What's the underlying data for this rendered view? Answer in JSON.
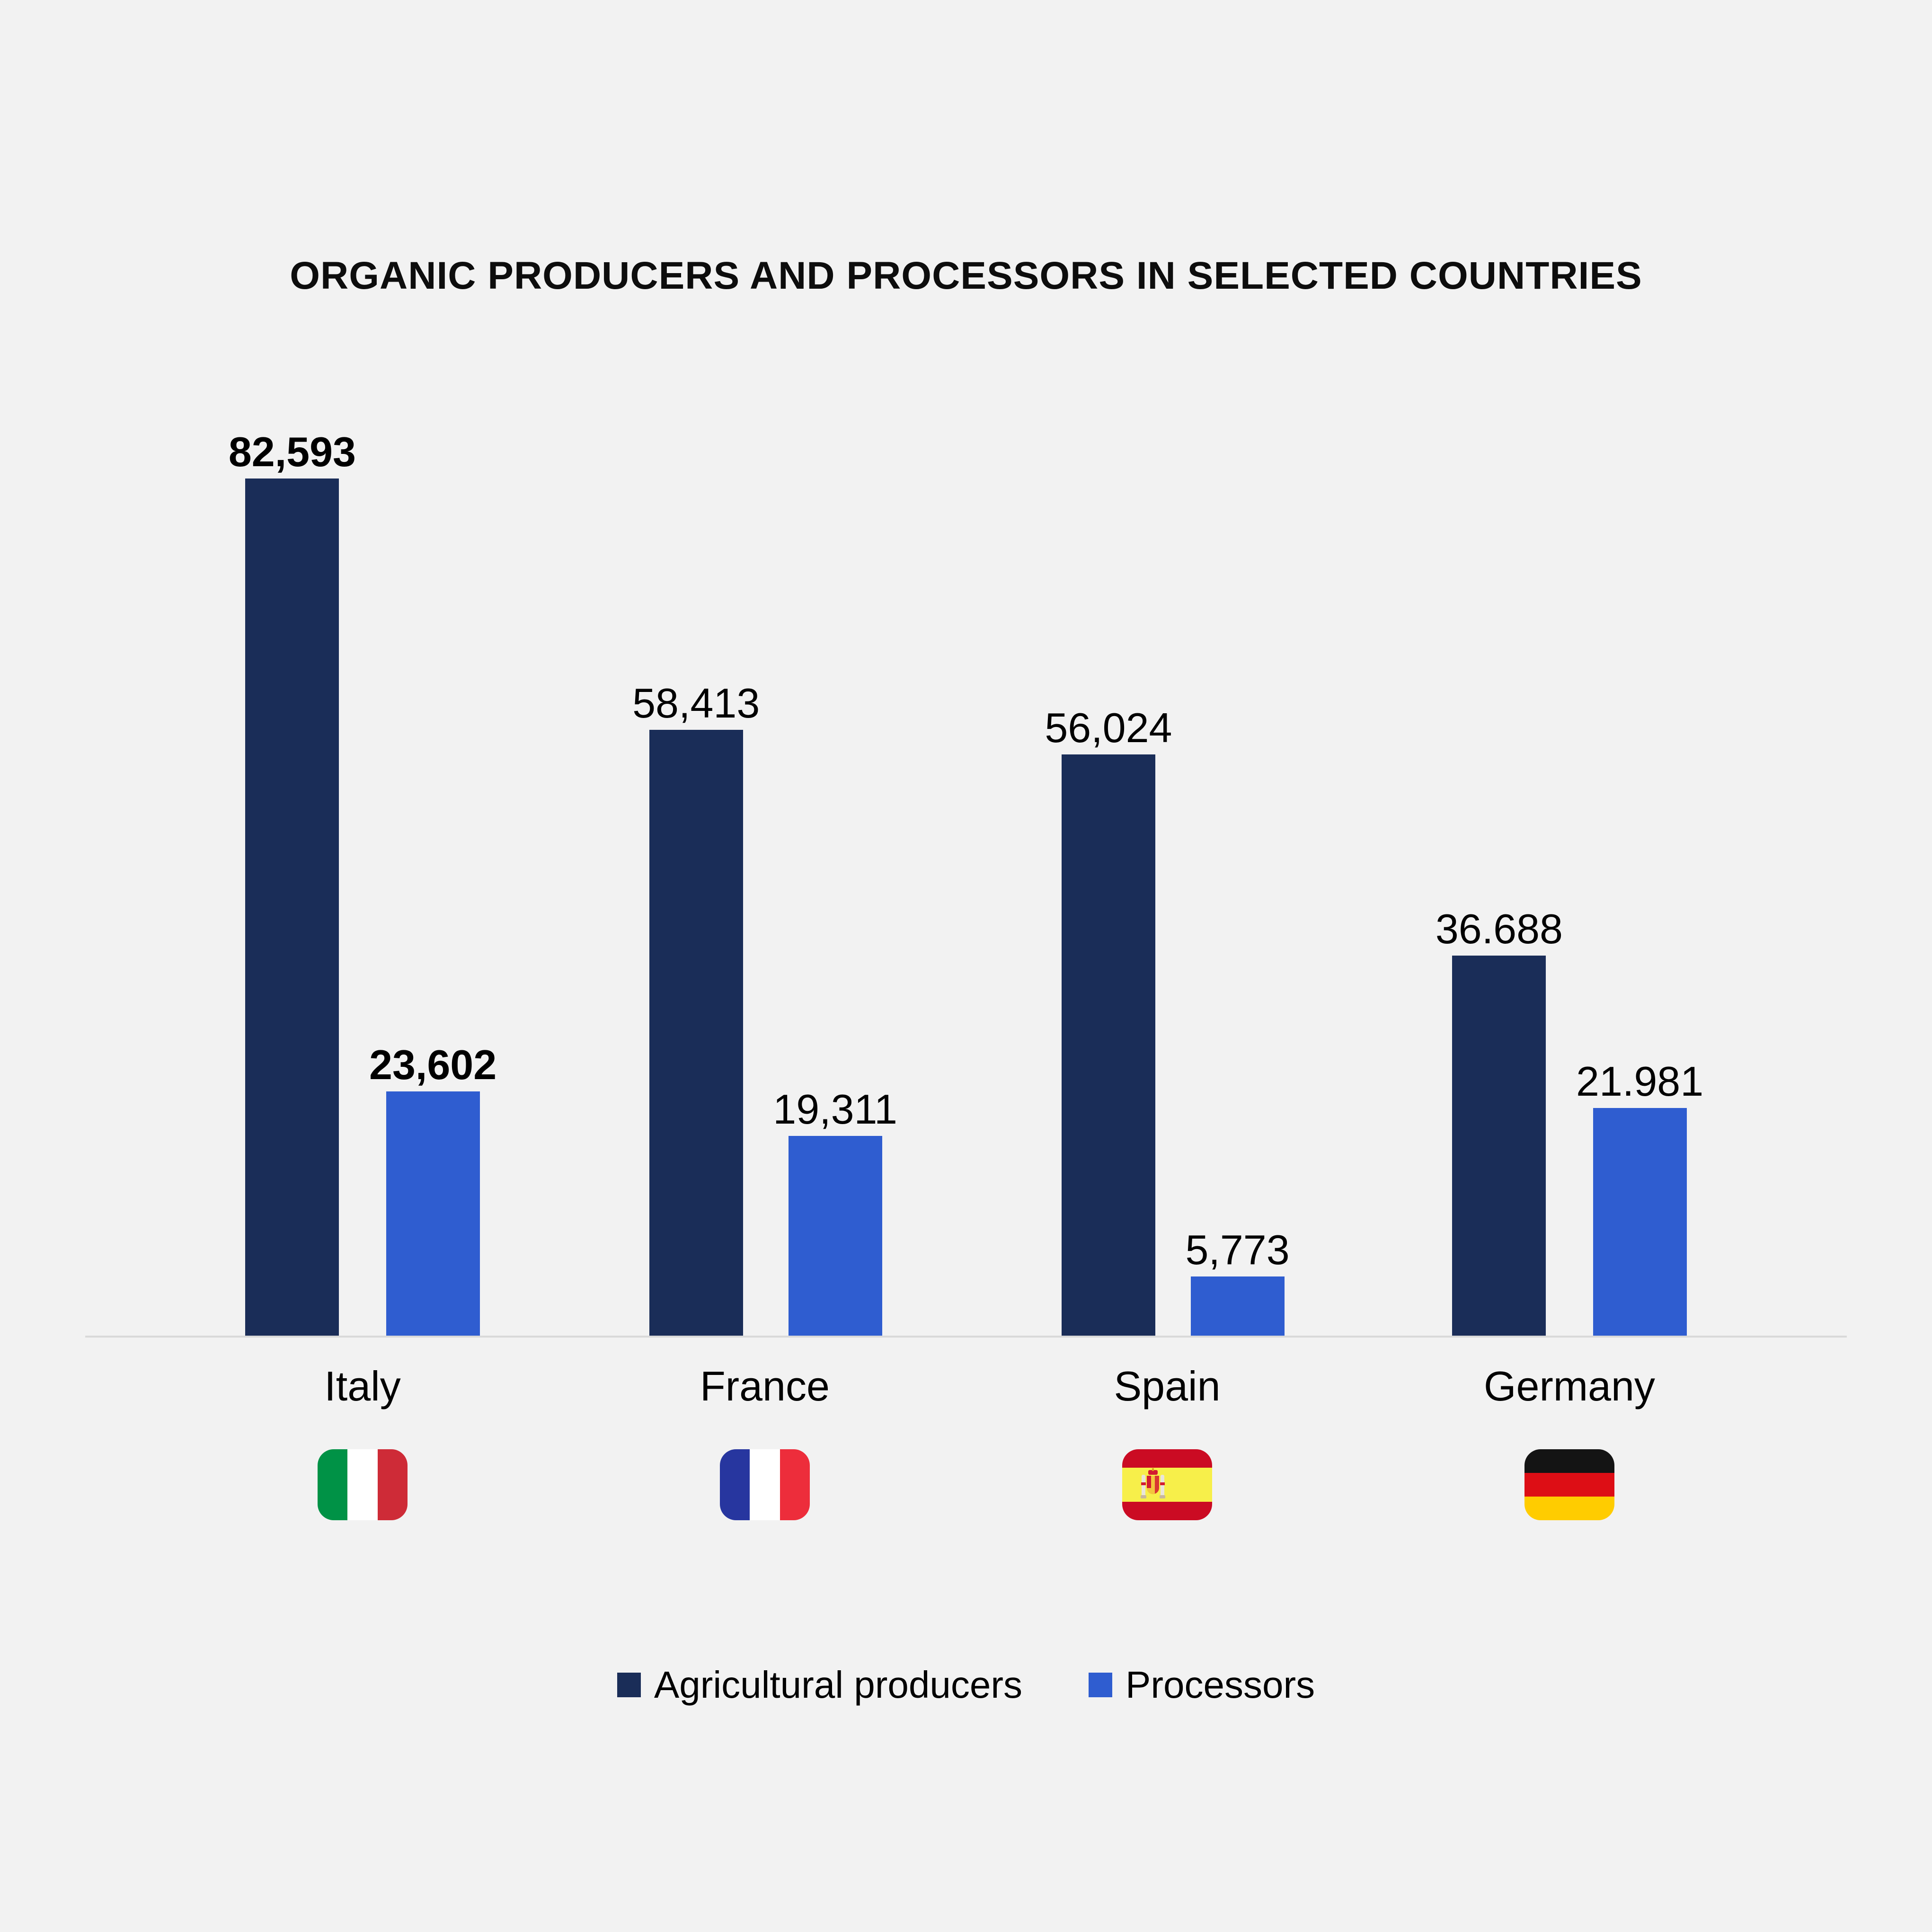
{
  "title": "ORGANIC PRODUCERS AND PROCESSORS IN SELECTED COUNTRIES",
  "background_color": "#f2f2f2",
  "axis_line_color": "#d9d9d9",
  "chart_data": {
    "type": "bar",
    "title": "ORGANIC PRODUCERS AND PROCESSORS IN SELECTED COUNTRIES",
    "categories": [
      "Italy",
      "France",
      "Spain",
      "Germany"
    ],
    "series": [
      {
        "name": "Agricultural producers",
        "color": "#1a2d58",
        "values": [
          82593,
          58413,
          56024,
          36688
        ],
        "labels": [
          "82,593",
          "58,413",
          "56,024",
          "36.688"
        ]
      },
      {
        "name": "Processors",
        "color": "#2f5dd0",
        "values": [
          23602,
          19311,
          5773,
          21981
        ],
        "labels": [
          "23,602",
          "19,311",
          "5,773",
          "21.981"
        ]
      }
    ],
    "bold_value_labels": [
      true,
      false,
      false,
      false
    ],
    "ylim": [
      0,
      82593
    ],
    "gridlines": false,
    "y_axis_visible": false,
    "legend_position": "bottom"
  },
  "legend": {
    "items": [
      {
        "label": "Agricultural producers",
        "color": "#1a2d58"
      },
      {
        "label": "Processors",
        "color": "#2f5dd0"
      }
    ]
  },
  "flags": [
    {
      "country": "Italy",
      "orientation": "vertical",
      "stripes": [
        "#009246",
        "#ffffff",
        "#ce2b37"
      ],
      "stripe_sizes": [
        33.3,
        33.4,
        33.3
      ],
      "emblem": false
    },
    {
      "country": "France",
      "orientation": "vertical",
      "stripes": [
        "#27369f",
        "#ffffff",
        "#ed2d3b"
      ],
      "stripe_sizes": [
        33.3,
        33.4,
        33.3
      ],
      "emblem": false
    },
    {
      "country": "Spain",
      "orientation": "horizontal",
      "stripes": [
        "#cb0b23",
        "#f7ef4a",
        "#cb0b23"
      ],
      "stripe_sizes": [
        26,
        48,
        26
      ],
      "emblem": true
    },
    {
      "country": "Germany",
      "orientation": "horizontal",
      "stripes": [
        "#141414",
        "#dd0e15",
        "#ffcc00"
      ],
      "stripe_sizes": [
        33.3,
        33.4,
        33.3
      ],
      "emblem": false
    }
  ]
}
